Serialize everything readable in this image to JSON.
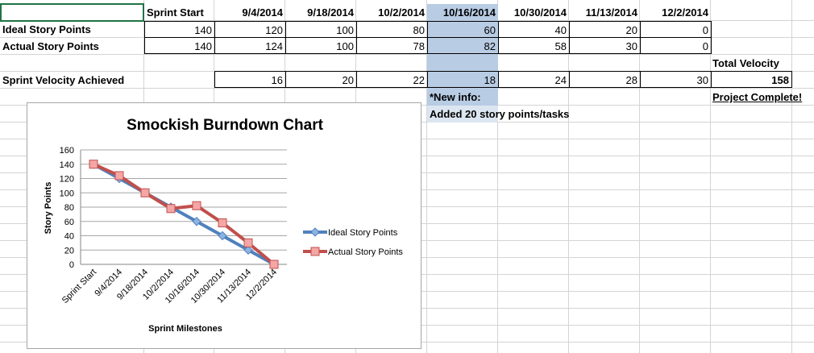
{
  "table": {
    "header": [
      "Sprint Start",
      "9/4/2014",
      "9/18/2014",
      "10/2/2014",
      "10/16/2014",
      "10/30/2014",
      "11/13/2014",
      "12/2/2014"
    ],
    "ideal_label": "Ideal Story Points",
    "ideal_values": [
      "140",
      "120",
      "100",
      "80",
      "60",
      "40",
      "20",
      "0"
    ],
    "actual_label": "Actual Story Points",
    "actual_values": [
      "140",
      "124",
      "100",
      "78",
      "82",
      "58",
      "30",
      "0"
    ],
    "velocity_label": "Sprint Velocity Achieved",
    "velocity_values": [
      "16",
      "20",
      "22",
      "18",
      "24",
      "28",
      "30"
    ],
    "total_label": "Total Velocity",
    "total_value": "158",
    "note_line1": "*New info:",
    "note_line2": "Added 20 story points/tasks",
    "complete_label": "Project Complete!"
  },
  "chart_data": {
    "type": "line",
    "title": "Smockish Burndown Chart",
    "xlabel": "Sprint Milestones",
    "ylabel": "Story Points",
    "categories": [
      "Sprint Start",
      "9/4/2014",
      "9/18/2014",
      "10/2/2014",
      "10/16/2014",
      "10/30/2014",
      "11/13/2014",
      "12/2/2014"
    ],
    "ylim": [
      0,
      160
    ],
    "yticks": [
      0,
      20,
      40,
      60,
      80,
      100,
      120,
      140,
      160
    ],
    "grid": true,
    "legend": "right",
    "series": [
      {
        "name": "Ideal Story Points",
        "values": [
          140,
          120,
          100,
          80,
          60,
          40,
          20,
          0
        ],
        "color": "#4f81bd",
        "marker": "diamond"
      },
      {
        "name": "Actual Story Points",
        "values": [
          140,
          124,
          100,
          78,
          82,
          58,
          30,
          0
        ],
        "color": "#c0504d",
        "marker": "square"
      }
    ]
  }
}
